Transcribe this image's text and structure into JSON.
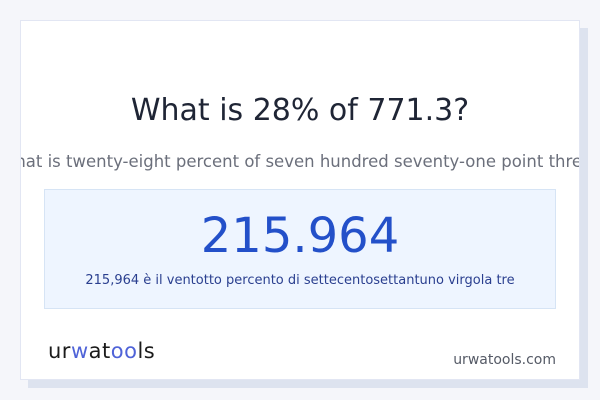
{
  "title": "What is 28% of 771.3?",
  "subtitle": "What is twenty-eight percent of seven hundred seventy-one point three?",
  "result": {
    "value": "215.964",
    "words": "215,964 è il ventotto percento di settecentosettantuno virgola tre"
  },
  "logo": {
    "part1": "ur",
    "part2": "w",
    "part3": "at",
    "part4": "oo",
    "part5": "ls"
  },
  "site": "urwatools.com",
  "colors": {
    "accent": "#2350c9",
    "logo_accent": "#4f63d8",
    "result_bg": "#eef5ff"
  }
}
